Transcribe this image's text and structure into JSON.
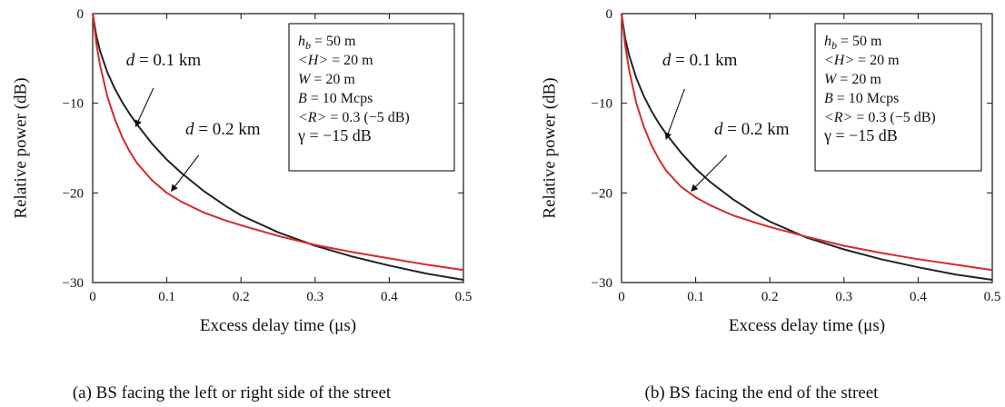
{
  "chart_data": [
    {
      "type": "line",
      "caption": "(a) BS facing the left or right side of the street",
      "xlabel": "Excess delay time (μs)",
      "ylabel": "Relative power (dB)",
      "xlim": [
        0,
        0.5
      ],
      "ylim": [
        -30,
        0
      ],
      "xticks": [
        0,
        0.1,
        0.2,
        0.3,
        0.4,
        0.5
      ],
      "xtick_labels": [
        "0",
        "0.1",
        "0.2",
        "0.3",
        "0.4",
        "0.5"
      ],
      "yticks": [
        0,
        -10,
        -20,
        -30
      ],
      "ytick_labels": [
        "0",
        "−10",
        "−20",
        "−30"
      ],
      "grid": false,
      "legend_box": {
        "position": "top-right",
        "lines": [
          {
            "sym": "h",
            "sub": "b",
            "rest": " = 50 m",
            "big": false
          },
          {
            "sym": "<H>",
            "sub": "",
            "rest": " = 20 m",
            "big": false
          },
          {
            "sym": "W",
            "sub": "",
            "rest": " = 20 m",
            "big": false
          },
          {
            "sym": "B",
            "sub": "",
            "rest": " = 10 Mcps",
            "big": false
          },
          {
            "sym": "<R>",
            "sub": "",
            "rest": " = 0.3 (−5 dB)",
            "big": false
          },
          {
            "sym": "",
            "sub": "",
            "rest": "γ = −15 dB",
            "big": true
          }
        ]
      },
      "series": [
        {
          "label_sym": "d",
          "label_rest": " = 0.1 km",
          "color": "#222222",
          "label_pos": [
            0.045,
            -5.8
          ],
          "arrow_from": [
            0.082,
            -8.3
          ],
          "arrow_to": [
            0.058,
            -12.6
          ],
          "x": [
            0,
            0.005,
            0.01,
            0.02,
            0.03,
            0.04,
            0.05,
            0.06,
            0.08,
            0.1,
            0.12,
            0.15,
            0.18,
            0.2,
            0.25,
            0.3,
            0.35,
            0.4,
            0.45,
            0.5
          ],
          "y": [
            0,
            -2.5,
            -4.2,
            -6.6,
            -8.4,
            -9.9,
            -11.2,
            -12.4,
            -14.5,
            -16.3,
            -17.8,
            -19.8,
            -21.5,
            -22.5,
            -24.4,
            -25.9,
            -27.1,
            -28.1,
            -29.0,
            -29.7
          ]
        },
        {
          "label_sym": "d",
          "label_rest": " = 0.2 km",
          "color": "#d42a2a",
          "label_pos": [
            0.125,
            -13.5
          ],
          "arrow_from": [
            0.143,
            -15.8
          ],
          "arrow_to": [
            0.106,
            -19.8
          ],
          "x": [
            0,
            0.005,
            0.01,
            0.02,
            0.03,
            0.04,
            0.05,
            0.06,
            0.08,
            0.1,
            0.12,
            0.15,
            0.18,
            0.2,
            0.25,
            0.3,
            0.35,
            0.4,
            0.45,
            0.5
          ],
          "y": [
            0,
            -3.4,
            -5.8,
            -9.3,
            -11.8,
            -13.8,
            -15.4,
            -16.7,
            -18.6,
            -20.0,
            -21.0,
            -22.2,
            -23.1,
            -23.6,
            -24.8,
            -25.8,
            -26.6,
            -27.3,
            -28.0,
            -28.6
          ]
        }
      ]
    },
    {
      "type": "line",
      "caption": "(b) BS facing the end of the street",
      "xlabel": "Excess delay time (μs)",
      "ylabel": "Relative power (dB)",
      "xlim": [
        0,
        0.5
      ],
      "ylim": [
        -30,
        0
      ],
      "xticks": [
        0,
        0.1,
        0.2,
        0.3,
        0.4,
        0.5
      ],
      "xtick_labels": [
        "0",
        "0.1",
        "0.2",
        "0.3",
        "0.4",
        "0.5"
      ],
      "yticks": [
        0,
        -10,
        -20,
        -30
      ],
      "ytick_labels": [
        "0",
        "−10",
        "−20",
        "−30"
      ],
      "grid": false,
      "legend_box": {
        "position": "top-right",
        "lines": [
          {
            "sym": "h",
            "sub": "b",
            "rest": " = 50 m",
            "big": false
          },
          {
            "sym": "<H>",
            "sub": "",
            "rest": " = 20 m",
            "big": false
          },
          {
            "sym": "W",
            "sub": "",
            "rest": " = 20 m",
            "big": false
          },
          {
            "sym": "B",
            "sub": "",
            "rest": " = 10 Mcps",
            "big": false
          },
          {
            "sym": "<R>",
            "sub": "",
            "rest": " = 0.3 (−5 dB)",
            "big": false
          },
          {
            "sym": "",
            "sub": "",
            "rest": "γ = −15 dB",
            "big": true
          }
        ]
      },
      "series": [
        {
          "label_sym": "d",
          "label_rest": " = 0.1 km",
          "color": "#222222",
          "label_pos": [
            0.055,
            -5.8
          ],
          "arrow_from": [
            0.085,
            -8.4
          ],
          "arrow_to": [
            0.06,
            -14.0
          ],
          "x": [
            0,
            0.005,
            0.01,
            0.02,
            0.03,
            0.04,
            0.05,
            0.06,
            0.08,
            0.1,
            0.12,
            0.15,
            0.18,
            0.2,
            0.25,
            0.3,
            0.35,
            0.4,
            0.45,
            0.5
          ],
          "y": [
            0,
            -2.8,
            -4.6,
            -7.2,
            -9.2,
            -10.8,
            -12.2,
            -13.4,
            -15.5,
            -17.3,
            -18.8,
            -20.7,
            -22.3,
            -23.2,
            -25.0,
            -26.3,
            -27.4,
            -28.3,
            -29.1,
            -29.7
          ]
        },
        {
          "label_sym": "d",
          "label_rest": " = 0.2 km",
          "color": "#d42a2a",
          "label_pos": [
            0.125,
            -13.5
          ],
          "arrow_from": [
            0.142,
            -15.8
          ],
          "arrow_to": [
            0.094,
            -19.8
          ],
          "x": [
            0,
            0.005,
            0.01,
            0.02,
            0.03,
            0.04,
            0.05,
            0.06,
            0.08,
            0.1,
            0.12,
            0.15,
            0.18,
            0.2,
            0.25,
            0.3,
            0.35,
            0.4,
            0.45,
            0.5
          ],
          "y": [
            0,
            -3.6,
            -6.2,
            -10.0,
            -12.6,
            -14.6,
            -16.2,
            -17.5,
            -19.3,
            -20.5,
            -21.4,
            -22.5,
            -23.3,
            -23.8,
            -24.9,
            -25.9,
            -26.7,
            -27.4,
            -28.0,
            -28.6
          ]
        }
      ]
    }
  ]
}
